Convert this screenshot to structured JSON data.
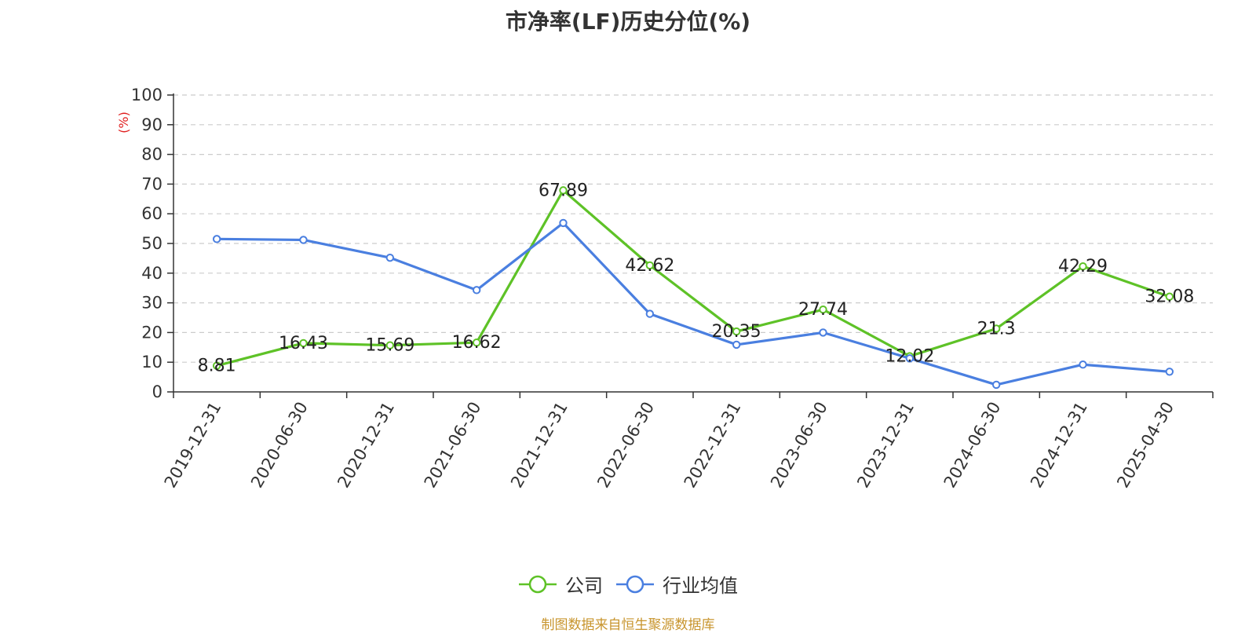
{
  "title": "市净率(LF)历史分位(%)",
  "source_note": "制图数据来自恒生聚源数据库",
  "colors": {
    "company": "#5ec227",
    "industry": "#4a7fe0",
    "axis_unit": "#e02020",
    "grid": "#cccccc",
    "axis": "#333333"
  },
  "chart_data": {
    "type": "line",
    "title": "市净率(LF)历史分位(%)",
    "ylabel": "(%)",
    "xlabel": "",
    "ylim": [
      0,
      100
    ],
    "yticks": [
      0,
      10,
      20,
      30,
      40,
      50,
      60,
      70,
      80,
      90,
      100
    ],
    "grid": true,
    "legend_position": "bottom",
    "categories": [
      "2019-12-31",
      "2020-06-30",
      "2020-12-31",
      "2021-06-30",
      "2021-12-31",
      "2022-06-30",
      "2022-12-31",
      "2023-06-30",
      "2023-12-31",
      "2024-06-30",
      "2024-12-31",
      "2025-04-30"
    ],
    "series": [
      {
        "name": "公司",
        "color": "#5ec227",
        "values": [
          8.81,
          16.43,
          15.69,
          16.62,
          67.89,
          42.62,
          20.35,
          27.74,
          12.02,
          21.3,
          42.29,
          32.08
        ],
        "labels": [
          "8.81",
          "16.43",
          "15.69",
          "16.62",
          "67.89",
          "42.62",
          "20.35",
          "27.74",
          "12.02",
          "21.3",
          "42.29",
          "32.08"
        ],
        "show_labels": true
      },
      {
        "name": "行业均值",
        "color": "#4a7fe0",
        "values": [
          51.5,
          51.2,
          45.2,
          34.3,
          56.9,
          26.3,
          15.9,
          20.0,
          11.3,
          2.4,
          9.2,
          6.8
        ],
        "show_labels": false
      }
    ]
  }
}
